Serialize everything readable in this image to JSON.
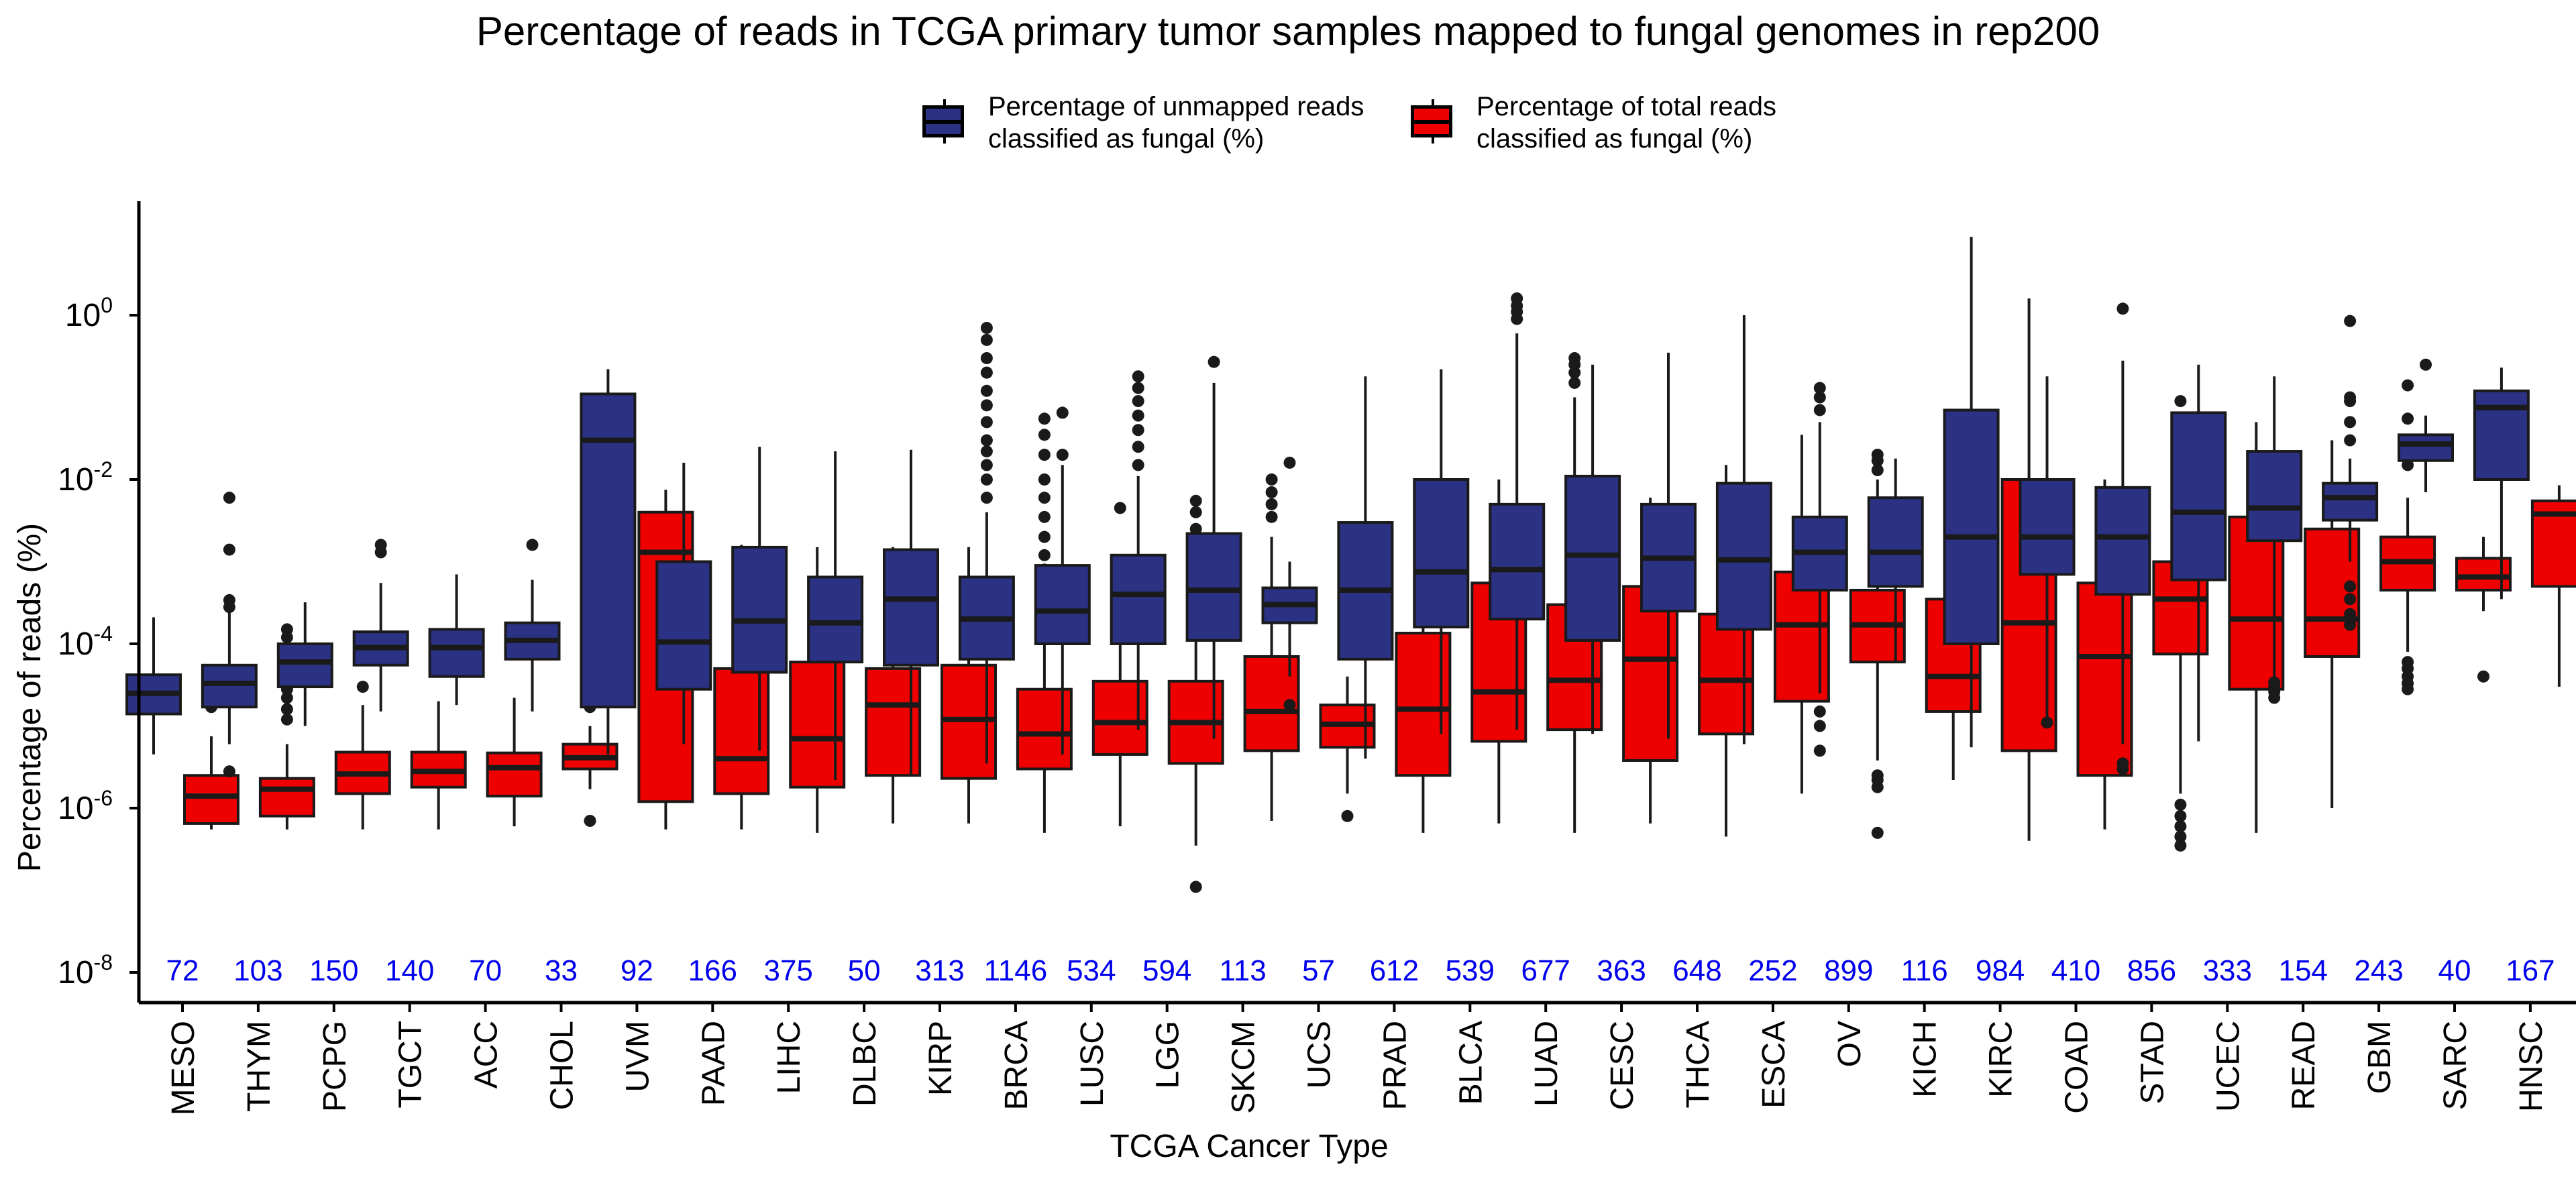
{
  "chart_data": {
    "type": "box",
    "title": "Percentage of reads in TCGA primary tumor samples mapped to fungal genomes in rep200",
    "xlabel": "TCGA Cancer Type",
    "ylabel": "Percentage of reads (%)",
    "yscale": "log10",
    "ylim": [
      1e-08,
      20
    ],
    "yticks": [
      {
        "value": 1e-08,
        "base": "10",
        "exp": "-8"
      },
      {
        "value": 1e-06,
        "base": "10",
        "exp": "-6"
      },
      {
        "value": 0.0001,
        "base": "10",
        "exp": "-4"
      },
      {
        "value": 0.01,
        "base": "10",
        "exp": "-2"
      },
      {
        "value": 1,
        "base": "10",
        "exp": "0"
      }
    ],
    "grid": false,
    "legend_position": "top",
    "series": [
      {
        "name": "Percentage of unmapped reads classified as fungal (%)",
        "legend_lines": [
          "Percentage of unmapped reads",
          "classified as fungal (%)"
        ],
        "color": "#2B3183"
      },
      {
        "name": "Percentage of total reads classified as fungal (%)",
        "legend_lines": [
          "Percentage of total reads",
          "classified as fungal (%)"
        ],
        "color": "#EE0000"
      }
    ],
    "count_color": "#0000EE",
    "categories": [
      {
        "name": "MESO",
        "n": "72",
        "unmapped": {
          "whislo": 4.5e-06,
          "q1": 1.4e-05,
          "med": 2.5e-05,
          "q3": 4.2e-05,
          "whishi": 0.00021,
          "fliers": []
        },
        "total": {
          "whislo": 5.5e-07,
          "q1": 6.5e-07,
          "med": 1.4e-06,
          "q3": 2.5e-06,
          "whishi": 7.5e-06,
          "fliers": [
            1.7e-05,
            2.1e-05
          ]
        }
      },
      {
        "name": "THYM",
        "n": "103",
        "unmapped": {
          "whislo": 6e-06,
          "q1": 1.7e-05,
          "med": 3.3e-05,
          "q3": 5.5e-05,
          "whishi": 0.00024,
          "fliers": [
            2.8e-06,
            0.00028,
            0.00034,
            0.0014,
            0.006
          ]
        },
        "total": {
          "whislo": 5.5e-07,
          "q1": 8e-07,
          "med": 1.7e-06,
          "q3": 2.3e-06,
          "whishi": 6e-06,
          "fliers": [
            1.2e-05,
            1.6e-05,
            2.2e-05,
            2.8e-05,
            0.00012,
            0.00015
          ]
        }
      },
      {
        "name": "PCPG",
        "n": "150",
        "unmapped": {
          "whislo": 1e-05,
          "q1": 3e-05,
          "med": 6e-05,
          "q3": 0.0001,
          "whishi": 0.00032,
          "fliers": []
        },
        "total": {
          "whislo": 5.5e-07,
          "q1": 1.5e-06,
          "med": 2.6e-06,
          "q3": 4.8e-06,
          "whishi": 1.8e-05,
          "fliers": [
            3e-05
          ]
        }
      },
      {
        "name": "TGCT",
        "n": "140",
        "unmapped": {
          "whislo": 1.5e-05,
          "q1": 5.5e-05,
          "med": 9e-05,
          "q3": 0.00014,
          "whishi": 0.00055,
          "fliers": [
            0.0013,
            0.0016
          ]
        },
        "total": {
          "whislo": 5.5e-07,
          "q1": 1.8e-06,
          "med": 2.8e-06,
          "q3": 4.8e-06,
          "whishi": 2e-05,
          "fliers": [
            6e-05
          ]
        }
      },
      {
        "name": "ACC",
        "n": "70",
        "unmapped": {
          "whislo": 1.8e-05,
          "q1": 4e-05,
          "med": 9e-05,
          "q3": 0.00015,
          "whishi": 0.0007,
          "fliers": []
        },
        "total": {
          "whislo": 6e-07,
          "q1": 1.4e-06,
          "med": 3.1e-06,
          "q3": 4.7e-06,
          "whishi": 2.2e-05,
          "fliers": []
        }
      },
      {
        "name": "CHOL",
        "n": "33",
        "unmapped": {
          "whislo": 1.5e-05,
          "q1": 6.5e-05,
          "med": 0.00011,
          "q3": 0.00018,
          "whishi": 0.0006,
          "fliers": [
            0.0016
          ]
        },
        "total": {
          "whislo": 1.7e-06,
          "q1": 3e-06,
          "med": 4.1e-06,
          "q3": 6e-06,
          "whishi": 1e-05,
          "fliers": [
            7e-07,
            1.7e-05,
            2.6e-05,
            3.4e-05
          ]
        }
      },
      {
        "name": "UVM",
        "n": "92",
        "unmapped": {
          "whislo": 4.5e-06,
          "q1": 1.7e-05,
          "med": 0.03,
          "q3": 0.11,
          "whishi": 0.22,
          "fliers": []
        },
        "total": {
          "whislo": 5.5e-07,
          "q1": 1.2e-06,
          "med": 0.0013,
          "q3": 0.004,
          "whishi": 0.0075,
          "fliers": []
        }
      },
      {
        "name": "PAAD",
        "n": "166",
        "unmapped": {
          "whislo": 6e-06,
          "q1": 2.8e-05,
          "med": 0.000105,
          "q3": 0.001,
          "whishi": 0.016,
          "fliers": []
        },
        "total": {
          "whislo": 5.5e-07,
          "q1": 1.5e-06,
          "med": 4e-06,
          "q3": 5e-05,
          "whishi": 0.0016,
          "fliers": []
        }
      },
      {
        "name": "LIHC",
        "n": "375",
        "unmapped": {
          "whislo": 5e-06,
          "q1": 4.5e-05,
          "med": 0.00019,
          "q3": 0.0015,
          "whishi": 0.025,
          "fliers": []
        },
        "total": {
          "whislo": 5e-07,
          "q1": 1.8e-06,
          "med": 7e-06,
          "q3": 6e-05,
          "whishi": 0.0015,
          "fliers": []
        }
      },
      {
        "name": "DLBC",
        "n": "50",
        "unmapped": {
          "whislo": 2.2e-06,
          "q1": 6e-05,
          "med": 0.00018,
          "q3": 0.00065,
          "whishi": 0.022,
          "fliers": []
        },
        "total": {
          "whislo": 6.5e-07,
          "q1": 2.5e-06,
          "med": 1.8e-05,
          "q3": 5e-05,
          "whishi": 0.0015,
          "fliers": []
        }
      },
      {
        "name": "KIRP",
        "n": "313",
        "unmapped": {
          "whislo": 2.5e-06,
          "q1": 5.5e-05,
          "med": 0.00035,
          "q3": 0.0014,
          "whishi": 0.023,
          "fliers": []
        },
        "total": {
          "whislo": 6.5e-07,
          "q1": 2.3e-06,
          "med": 1.2e-05,
          "q3": 5.5e-05,
          "whishi": 0.0015,
          "fliers": []
        }
      },
      {
        "name": "BRCA",
        "n": "1146",
        "unmapped": {
          "whislo": 3.5e-06,
          "q1": 6.5e-05,
          "med": 0.0002,
          "q3": 0.00065,
          "whishi": 0.004,
          "fliers": [
            0.006,
            0.01,
            0.015,
            0.022,
            0.03,
            0.05,
            0.08,
            0.12,
            0.2,
            0.3,
            0.5,
            0.7
          ]
        },
        "total": {
          "whislo": 5e-07,
          "q1": 3e-06,
          "med": 8e-06,
          "q3": 2.8e-05,
          "whishi": 0.0002,
          "fliers": [
            0.0003,
            0.0005,
            0.0008,
            0.0012,
            0.002,
            0.0035,
            0.006,
            0.01,
            0.02,
            0.035,
            0.055
          ]
        }
      },
      {
        "name": "LUSC",
        "n": "534",
        "unmapped": {
          "whislo": 4.5e-06,
          "q1": 0.0001,
          "med": 0.00025,
          "q3": 0.0009,
          "whishi": 0.015,
          "fliers": [
            0.02,
            0.065
          ]
        },
        "total": {
          "whislo": 6e-07,
          "q1": 4.5e-06,
          "med": 1.1e-05,
          "q3": 3.5e-05,
          "whishi": 0.00032,
          "fliers": [
            0.0008,
            0.0045
          ]
        }
      },
      {
        "name": "LGG",
        "n": "594",
        "unmapped": {
          "whislo": 9e-06,
          "q1": 0.0001,
          "med": 0.0004,
          "q3": 0.0012,
          "whishi": 0.011,
          "fliers": [
            0.015,
            0.025,
            0.04,
            0.06,
            0.09,
            0.13,
            0.18
          ]
        },
        "total": {
          "whislo": 3.5e-07,
          "q1": 3.5e-06,
          "med": 1.1e-05,
          "q3": 3.5e-05,
          "whishi": 0.00035,
          "fliers": [
            1.1e-07,
            0.0005,
            0.0009,
            0.0015,
            0.0025,
            0.004,
            0.0055
          ]
        }
      },
      {
        "name": "SKCM",
        "n": "113",
        "unmapped": {
          "whislo": 7e-06,
          "q1": 0.00011,
          "med": 0.00045,
          "q3": 0.0022,
          "whishi": 0.15,
          "fliers": [
            0.27
          ]
        },
        "total": {
          "whislo": 7e-07,
          "q1": 5e-06,
          "med": 1.5e-05,
          "q3": 7e-05,
          "whishi": 0.002,
          "fliers": [
            0.0035,
            0.005,
            0.007,
            0.01
          ]
        }
      },
      {
        "name": "UCS",
        "n": "57",
        "unmapped": {
          "whislo": 4e-05,
          "q1": 0.00018,
          "med": 0.0003,
          "q3": 0.00048,
          "whishi": 0.001,
          "fliers": [
            1.8e-05,
            0.016
          ]
        },
        "total": {
          "whislo": 1.5e-06,
          "q1": 5.5e-06,
          "med": 1.05e-05,
          "q3": 1.8e-05,
          "whishi": 4e-05,
          "fliers": [
            8e-07,
            0.0001,
            0.0012
          ]
        }
      },
      {
        "name": "PRAD",
        "n": "612",
        "unmapped": {
          "whislo": 4e-06,
          "q1": 6.5e-05,
          "med": 0.00045,
          "q3": 0.003,
          "whishi": 0.18,
          "fliers": []
        },
        "total": {
          "whislo": 5e-07,
          "q1": 2.5e-06,
          "med": 1.6e-05,
          "q3": 0.000135,
          "whishi": 0.0075,
          "fliers": []
        }
      },
      {
        "name": "BLCA",
        "n": "539",
        "unmapped": {
          "whislo": 8e-06,
          "q1": 0.00016,
          "med": 0.00075,
          "q3": 0.01,
          "whishi": 0.22,
          "fliers": []
        },
        "total": {
          "whislo": 6.5e-07,
          "q1": 6.5e-06,
          "med": 2.6e-05,
          "q3": 0.00055,
          "whishi": 0.01,
          "fliers": []
        }
      },
      {
        "name": "LUAD",
        "n": "677",
        "unmapped": {
          "whislo": 9e-06,
          "q1": 0.0002,
          "med": 0.0008,
          "q3": 0.005,
          "whishi": 0.6,
          "fliers": [
            0.9,
            1.1,
            1.3,
            1.6
          ]
        },
        "total": {
          "whislo": 5e-07,
          "q1": 9e-06,
          "med": 3.6e-05,
          "q3": 0.0003,
          "whishi": 0.1,
          "fliers": [
            0.15,
            0.2,
            0.25,
            0.3
          ]
        }
      },
      {
        "name": "CESC",
        "n": "363",
        "unmapped": {
          "whislo": 8e-06,
          "q1": 0.00011,
          "med": 0.0012,
          "q3": 0.011,
          "whishi": 0.25,
          "fliers": []
        },
        "total": {
          "whislo": 6.5e-07,
          "q1": 3.8e-06,
          "med": 6.5e-05,
          "q3": 0.0005,
          "whishi": 0.006,
          "fliers": []
        }
      },
      {
        "name": "THCA",
        "n": "648",
        "unmapped": {
          "whislo": 7e-06,
          "q1": 0.00025,
          "med": 0.0011,
          "q3": 0.005,
          "whishi": 0.35,
          "fliers": []
        },
        "total": {
          "whislo": 4.5e-07,
          "q1": 8e-06,
          "med": 3.6e-05,
          "q3": 0.00023,
          "whishi": 0.015,
          "fliers": []
        }
      },
      {
        "name": "ESCA",
        "n": "252",
        "unmapped": {
          "whislo": 6e-06,
          "q1": 0.00015,
          "med": 0.00105,
          "q3": 0.009,
          "whishi": 1,
          "fliers": []
        },
        "total": {
          "whislo": 1.5e-06,
          "q1": 2e-05,
          "med": 0.00017,
          "q3": 0.00075,
          "whishi": 0.035,
          "fliers": []
        }
      },
      {
        "name": "OV",
        "n": "899",
        "unmapped": {
          "whislo": 2.5e-05,
          "q1": 0.00045,
          "med": 0.0013,
          "q3": 0.0035,
          "whishi": 0.05,
          "fliers": [
            5e-06,
            1e-05,
            1.5e-05,
            0.07,
            0.1,
            0.13
          ]
        },
        "total": {
          "whislo": 3.8e-06,
          "q1": 6e-05,
          "med": 0.00017,
          "q3": 0.00045,
          "whishi": 0.01,
          "fliers": [
            5e-07,
            1.8e-06,
            2.2e-06,
            2.5e-06,
            0.013,
            0.017,
            0.02
          ]
        }
      },
      {
        "name": "KICH",
        "n": "116",
        "unmapped": {
          "whislo": 6e-05,
          "q1": 0.0005,
          "med": 0.0013,
          "q3": 0.006,
          "whishi": 0.018,
          "fliers": []
        },
        "total": {
          "whislo": 2.2e-06,
          "q1": 1.5e-05,
          "med": 4e-05,
          "q3": 0.00035,
          "whishi": 0.0015,
          "fliers": []
        }
      },
      {
        "name": "KIRC",
        "n": "984",
        "unmapped": {
          "whislo": 5.5e-06,
          "q1": 0.0001,
          "med": 0.002,
          "q3": 0.07,
          "whishi": 9,
          "fliers": []
        },
        "total": {
          "whislo": 4e-07,
          "q1": 5e-06,
          "med": 0.00018,
          "q3": 0.01,
          "whishi": 1.6,
          "fliers": []
        }
      },
      {
        "name": "COAD",
        "n": "410",
        "unmapped": {
          "whislo": 1e-05,
          "q1": 0.0007,
          "med": 0.002,
          "q3": 0.01,
          "whishi": 0.18,
          "fliers": [
            1.1e-05
          ]
        },
        "total": {
          "whislo": 5.5e-07,
          "q1": 2.5e-06,
          "med": 7e-05,
          "q3": 0.00055,
          "whishi": 0.01,
          "fliers": []
        }
      },
      {
        "name": "STAD",
        "n": "856",
        "unmapped": {
          "whislo": 6e-06,
          "q1": 0.0004,
          "med": 0.002,
          "q3": 0.008,
          "whishi": 0.28,
          "fliers": [
            3e-06,
            3.5e-06,
            1.2
          ]
        },
        "total": {
          "whislo": 1.5e-06,
          "q1": 7.5e-05,
          "med": 0.00035,
          "q3": 0.001,
          "whishi": 0.025,
          "fliers": [
            3.5e-07,
            4.5e-07,
            6e-07,
            8e-07,
            1.1e-06,
            0.09
          ]
        }
      },
      {
        "name": "UCEC",
        "n": "333",
        "unmapped": {
          "whislo": 6.5e-06,
          "q1": 0.0006,
          "med": 0.004,
          "q3": 0.065,
          "whishi": 0.25,
          "fliers": []
        },
        "total": {
          "whislo": 5e-07,
          "q1": 2.8e-05,
          "med": 0.0002,
          "q3": 0.0035,
          "whishi": 0.05,
          "fliers": []
        }
      },
      {
        "name": "READ",
        "n": "154",
        "unmapped": {
          "whislo": 4e-05,
          "q1": 0.0018,
          "med": 0.0045,
          "q3": 0.022,
          "whishi": 0.18,
          "fliers": [
            2.2e-05,
            2.6e-05,
            3e-05,
            3.4e-05
          ]
        },
        "total": {
          "whislo": 1e-06,
          "q1": 7e-05,
          "med": 0.0002,
          "q3": 0.0025,
          "whishi": 0.03,
          "fliers": []
        }
      },
      {
        "name": "GBM",
        "n": "243",
        "unmapped": {
          "whislo": 0.001,
          "q1": 0.0032,
          "med": 0.006,
          "q3": 0.009,
          "whishi": 0.018,
          "fliers": [
            0.00017,
            0.00023,
            0.00035,
            0.0005,
            0.03,
            0.05,
            0.09,
            0.1,
            0.85
          ]
        },
        "total": {
          "whislo": 8e-05,
          "q1": 0.00045,
          "med": 0.001,
          "q3": 0.002,
          "whishi": 0.006,
          "fliers": [
            2.8e-05,
            3.3e-05,
            4e-05,
            5e-05,
            6e-05,
            0.015,
            0.02,
            0.025,
            0.055,
            0.14
          ]
        }
      },
      {
        "name": "SARC",
        "n": "40",
        "unmapped": {
          "whislo": 0.007,
          "q1": 0.017,
          "med": 0.027,
          "q3": 0.035,
          "whishi": 0.06,
          "fliers": [
            0.25
          ]
        },
        "total": {
          "whislo": 0.00025,
          "q1": 0.00045,
          "med": 0.00065,
          "q3": 0.0011,
          "whishi": 0.002,
          "fliers": [
            4e-05
          ]
        }
      },
      {
        "name": "HNSC",
        "n": "167",
        "unmapped": {
          "whislo": 0.00035,
          "q1": 0.01,
          "med": 0.075,
          "q3": 0.12,
          "whishi": 0.23,
          "fliers": []
        },
        "total": {
          "whislo": 3e-05,
          "q1": 0.0005,
          "med": 0.0038,
          "q3": 0.0055,
          "whishi": 0.0085,
          "fliers": []
        }
      }
    ]
  }
}
